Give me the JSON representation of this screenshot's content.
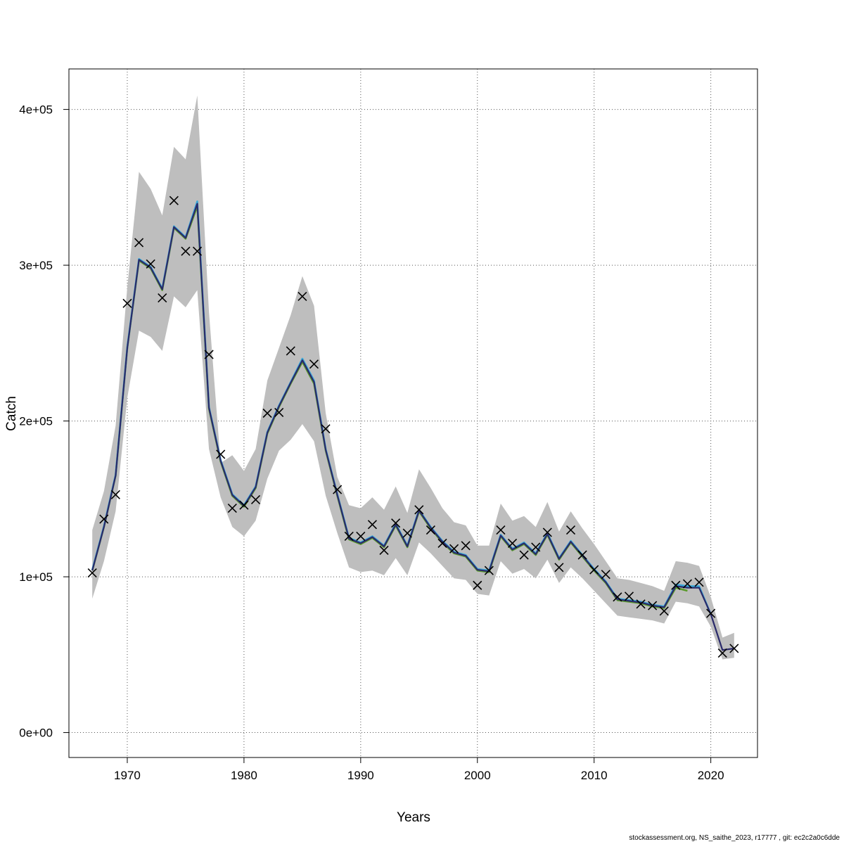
{
  "chart_data": {
    "type": "line",
    "title": "",
    "xlabel": "Years",
    "ylabel": "Catch",
    "xlim": [
      1965,
      2024
    ],
    "ylim": [
      -16000,
      426000
    ],
    "x_ticks": [
      1970,
      1980,
      1990,
      2000,
      2010,
      2020
    ],
    "x_tick_labels": [
      "1970",
      "1980",
      "1990",
      "2000",
      "2010",
      "2020"
    ],
    "y_ticks": [
      0,
      100000,
      200000,
      300000,
      400000
    ],
    "y_tick_labels": [
      "0e+00",
      "1e+05",
      "2e+05",
      "3e+05",
      "4e+05"
    ],
    "grid": true,
    "band_color": "#bebebe",
    "years": [
      1967,
      1968,
      1969,
      1970,
      1971,
      1972,
      1973,
      1974,
      1975,
      1976,
      1977,
      1978,
      1979,
      1980,
      1981,
      1982,
      1983,
      1984,
      1985,
      1986,
      1987,
      1988,
      1989,
      1990,
      1991,
      1992,
      1993,
      1994,
      1995,
      1996,
      1997,
      1998,
      1999,
      2000,
      2001,
      2002,
      2003,
      2004,
      2005,
      2006,
      2007,
      2008,
      2009,
      2010,
      2011,
      2012,
      2013,
      2014,
      2015,
      2016,
      2017,
      2018,
      2019,
      2020,
      2021,
      2022
    ],
    "observed": [
      102500,
      137000,
      152700,
      275500,
      314500,
      300800,
      279000,
      341500,
      309000,
      242700,
      178600,
      144000,
      146000,
      149500,
      205000,
      205500,
      245000,
      280000,
      236500,
      195000,
      156000,
      126000,
      126000,
      133500,
      117000,
      134500,
      128000,
      143000,
      130000,
      121500,
      118000,
      120000,
      94500,
      104000,
      130000,
      121500,
      114000,
      119000,
      128500,
      106000,
      130000,
      114000,
      104500,
      101500,
      87000,
      87500,
      82500,
      81500,
      78000,
      94500,
      95500,
      96500,
      76500,
      51000,
      54000
    ],
    "observed_years": [
      1967,
      1968,
      1969,
      1970,
      1971,
      1972,
      1973,
      1974,
      1975,
      1977,
      1978,
      1979,
      1980,
      1981,
      1982,
      1983,
      1984,
      1985,
      1986,
      1987,
      1988,
      1989,
      1990,
      1991,
      1992,
      1993,
      1994,
      1995,
      1996,
      1997,
      1998,
      1999,
      2000,
      2001,
      2002,
      2003,
      2004,
      2005,
      2006,
      2007,
      2008,
      2009,
      2010,
      2011,
      2012,
      2013,
      2014,
      2015,
      2016,
      2017,
      2018,
      2019,
      2020,
      2021,
      2022
    ],
    "observed_1976": 309000,
    "upper": [
      130000,
      155000,
      197000,
      286000,
      360000,
      349000,
      332000,
      376000,
      368000,
      409000,
      270000,
      173000,
      178000,
      168000,
      182000,
      226000,
      247000,
      268000,
      293000,
      274000,
      205000,
      164000,
      146000,
      144000,
      151000,
      143000,
      158000,
      141000,
      169000,
      157000,
      144000,
      135000,
      133000,
      120000,
      120000,
      147000,
      136000,
      139000,
      132000,
      148000,
      129000,
      142000,
      131000,
      121000,
      110000,
      99000,
      98000,
      96000,
      94000,
      91000,
      110000,
      109000,
      107000,
      87000,
      61000,
      64000
    ],
    "lower": [
      86000,
      110000,
      142000,
      215000,
      258000,
      254000,
      245000,
      280000,
      273000,
      284000,
      182000,
      151000,
      132000,
      126000,
      136000,
      163000,
      181000,
      188000,
      198000,
      187000,
      152000,
      128000,
      106000,
      103000,
      104000,
      101000,
      112000,
      101000,
      122000,
      115000,
      107000,
      99000,
      98000,
      89000,
      88000,
      110000,
      102000,
      105000,
      99000,
      111000,
      96000,
      106000,
      99000,
      91000,
      83000,
      75000,
      74000,
      73000,
      72000,
      70000,
      84000,
      83000,
      81000,
      68000,
      47000,
      48000
    ],
    "series": [
      {
        "color": "#5a9a2a",
        "values": [
          104000,
          132000,
          165000,
          247000,
          303000,
          298000,
          284000,
          324000,
          317000,
          338000,
          208000,
          174000,
          152000,
          145000,
          157000,
          192000,
          209000,
          224000,
          238000,
          224000,
          181000,
          152000,
          124000,
          121000,
          125000,
          119000,
          133000,
          119000,
          142000,
          131000,
          122000,
          115000,
          113000,
          104000,
          103000,
          126000,
          117000,
          121000,
          114000,
          127000,
          111000,
          122000,
          113000,
          104000,
          96000,
          85000,
          84000,
          83000,
          81000,
          80000,
          93000,
          91000,
          null,
          null,
          null,
          null
        ]
      },
      {
        "color": "#3aa8d8",
        "values": [
          104500,
          132500,
          165500,
          247500,
          304000,
          299000,
          285000,
          325000,
          318000,
          341000,
          209000,
          175000,
          153000,
          146000,
          158000,
          193000,
          210000,
          225000,
          240000,
          226000,
          182000,
          153000,
          125000,
          122000,
          126000,
          120000,
          134000,
          120000,
          143000,
          132000,
          123000,
          116000,
          114000,
          105000,
          104000,
          127000,
          118000,
          122000,
          115000,
          128000,
          112000,
          123000,
          114000,
          105000,
          97000,
          86000,
          85000,
          84000,
          82000,
          81000,
          95000,
          94000,
          94000,
          76000,
          null,
          null
        ]
      },
      {
        "color": "#2a2a6a",
        "values": [
          104000,
          132000,
          165000,
          247000,
          303500,
          298500,
          284500,
          324500,
          317500,
          339500,
          208500,
          174500,
          152500,
          145500,
          157500,
          192500,
          209500,
          224500,
          239000,
          225000,
          181500,
          152500,
          124500,
          121500,
          125500,
          119500,
          133500,
          119500,
          142500,
          131500,
          122500,
          115500,
          113500,
          104500,
          103500,
          126500,
          117500,
          121500,
          114500,
          127500,
          111500,
          122500,
          113500,
          104500,
          96500,
          85500,
          84500,
          83500,
          81500,
          80500,
          94000,
          93000,
          93000,
          76000,
          53000,
          54000
        ]
      }
    ]
  },
  "footer": "stockassessment.org, NS_saithe_2023, r17777 , git: ec2c2a0c6dde"
}
